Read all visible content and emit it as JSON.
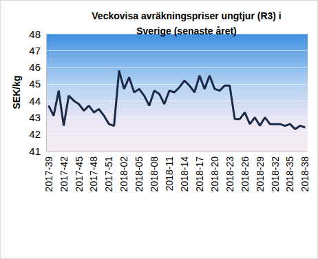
{
  "chart_data": {
    "type": "line",
    "title": "Veckovisa avräkningspriser ungtjur (R3) i\nSverige (senaste året)",
    "y_label": "SEK/kg",
    "categories": [
      "2017-39",
      null,
      null,
      "2017-42",
      null,
      null,
      "2017-45",
      null,
      null,
      "2017-48",
      null,
      null,
      "2017-51",
      null,
      null,
      "2018-02",
      null,
      null,
      "2018-05",
      null,
      null,
      "2018-08",
      null,
      null,
      "2018-11",
      null,
      null,
      "2018-14",
      null,
      null,
      "2018-17",
      null,
      null,
      "2018-20",
      null,
      null,
      "2018-23",
      null,
      null,
      "2018-26",
      null,
      null,
      "2018-29",
      null,
      null,
      "2018-32",
      null,
      null,
      "2018-35",
      null,
      null,
      "2018-38"
    ],
    "values": [
      43.7,
      43.1,
      44.6,
      42.5,
      44.3,
      44.0,
      43.8,
      43.4,
      43.7,
      43.3,
      43.5,
      43.1,
      42.6,
      42.5,
      45.8,
      44.7,
      45.4,
      44.5,
      44.7,
      44.3,
      43.7,
      44.6,
      44.4,
      43.8,
      44.6,
      44.5,
      44.8,
      45.2,
      44.9,
      44.5,
      45.5,
      44.7,
      45.5,
      44.7,
      44.6,
      44.9,
      44.9,
      42.9,
      42.9,
      43.3,
      42.6,
      43.0,
      42.5,
      43.0,
      42.6,
      42.6,
      42.6,
      42.5,
      42.6,
      42.3,
      42.5,
      42.4
    ],
    "color": "#1c2a48",
    "ylim": [
      41,
      48
    ],
    "yticks": [
      41,
      42,
      43,
      44,
      45,
      46,
      47,
      48
    ],
    "grid": true
  }
}
